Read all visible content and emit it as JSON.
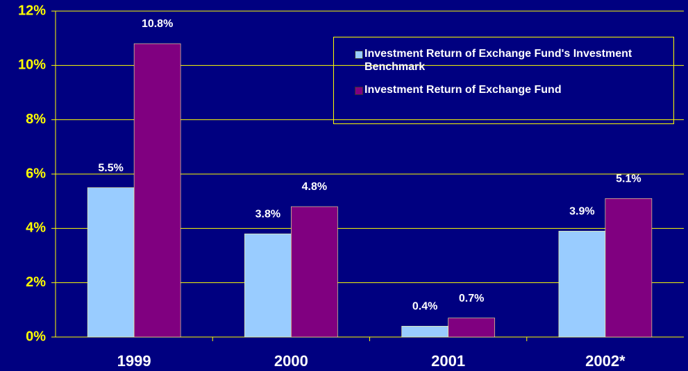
{
  "chart_data": {
    "type": "bar",
    "categories": [
      "1999",
      "2000",
      "2001",
      "2002*"
    ],
    "series": [
      {
        "name": "Investment Return of Exchange Fund's Investment Benchmark",
        "color": "#99ccff",
        "values": [
          5.5,
          3.8,
          0.4,
          3.9
        ],
        "value_labels": [
          "5.5%",
          "3.8%",
          "0.4%",
          "3.9%"
        ]
      },
      {
        "name": "Investment Return of Exchange Fund",
        "color": "#800080",
        "values": [
          10.8,
          4.8,
          0.7,
          5.1
        ],
        "value_labels": [
          "10.8%",
          "4.8%",
          "0.7%",
          "5.1%"
        ]
      }
    ],
    "ylim": [
      0,
      12
    ],
    "yticks": [
      {
        "value": 0,
        "label": "0%"
      },
      {
        "value": 2,
        "label": "2%"
      },
      {
        "value": 4,
        "label": "4%"
      },
      {
        "value": 6,
        "label": "6%"
      },
      {
        "value": 8,
        "label": "8%"
      },
      {
        "value": 10,
        "label": "10%"
      },
      {
        "value": 12,
        "label": "12%"
      }
    ],
    "grid": true,
    "legend": "upper right"
  }
}
